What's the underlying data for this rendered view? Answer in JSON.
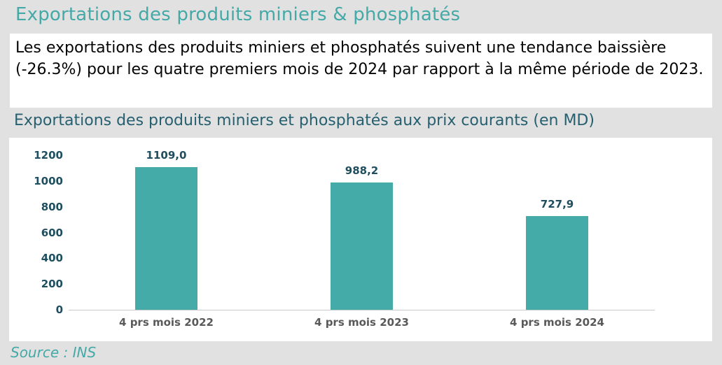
{
  "page": {
    "title": "Exportations des produits miniers & phosphatés",
    "summary": "Les exportations des produits miniers et phosphatés suivent une tendance baissière (-26.3%) pour les quatre premiers mois de 2024 par rapport à la même période de 2023.",
    "source": "Source : INS"
  },
  "colors": {
    "background": "#e1e1e1",
    "accent_teal": "#44a9a7",
    "subtitle_teal": "#266070",
    "bar_fill": "#45aba9",
    "axis_label": "#1f4e5f",
    "category_label": "#595959",
    "axis_line": "#c9c9c9",
    "body_text": "#050505"
  },
  "chart_data": {
    "type": "bar",
    "title": "Exportations des produits miniers et phosphatés aux prix courants (en MD)",
    "categories": [
      "4 prs mois 2022",
      "4 prs mois 2023",
      "4 prs mois 2024"
    ],
    "values": [
      1109.0,
      988.2,
      727.9
    ],
    "value_labels": [
      "1109,0",
      "988,2",
      "727,9"
    ],
    "y_ticks": [
      0,
      200,
      400,
      600,
      800,
      1000,
      1200
    ],
    "ylim": [
      0,
      1200
    ],
    "xlabel": "",
    "ylabel": "",
    "grid": false,
    "legend": "none"
  }
}
